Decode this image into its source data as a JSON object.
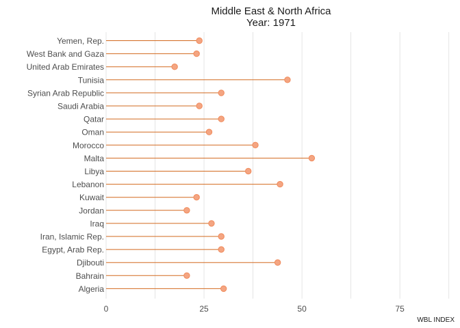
{
  "chart_data": {
    "type": "lollipop",
    "title": "Middle East & North Africa",
    "subtitle": "Year: 1971",
    "xlabel": "WBL INDEX",
    "ylabel": "",
    "xlim": [
      0,
      90
    ],
    "x_ticks": [
      0,
      25,
      50,
      75
    ],
    "minor_gridlines": [
      12.5,
      37.5,
      62.5,
      87.5
    ],
    "grid": "vertical",
    "legend": "none",
    "categories": [
      "Yemen, Rep.",
      "West Bank and Gaza",
      "United Arab Emirates",
      "Tunisia",
      "Syrian Arab Republic",
      "Saudi Arabia",
      "Qatar",
      "Oman",
      "Morocco",
      "Malta",
      "Libya",
      "Lebanon",
      "Kuwait",
      "Jordan",
      "Iraq",
      "Iran, Islamic Rep.",
      "Egypt, Arab Rep.",
      "Djibouti",
      "Bahrain",
      "Algeria"
    ],
    "values": [
      23.8,
      23.1,
      17.5,
      46.3,
      29.4,
      23.8,
      29.4,
      26.3,
      38.1,
      52.5,
      36.3,
      44.4,
      23.1,
      20.6,
      26.9,
      29.4,
      29.4,
      43.8,
      20.6,
      30.0
    ],
    "colors": {
      "line": "#d2691e",
      "point_fill": "#f4a582",
      "point_stroke": "#f08a5a",
      "grid": "#dedede"
    }
  }
}
